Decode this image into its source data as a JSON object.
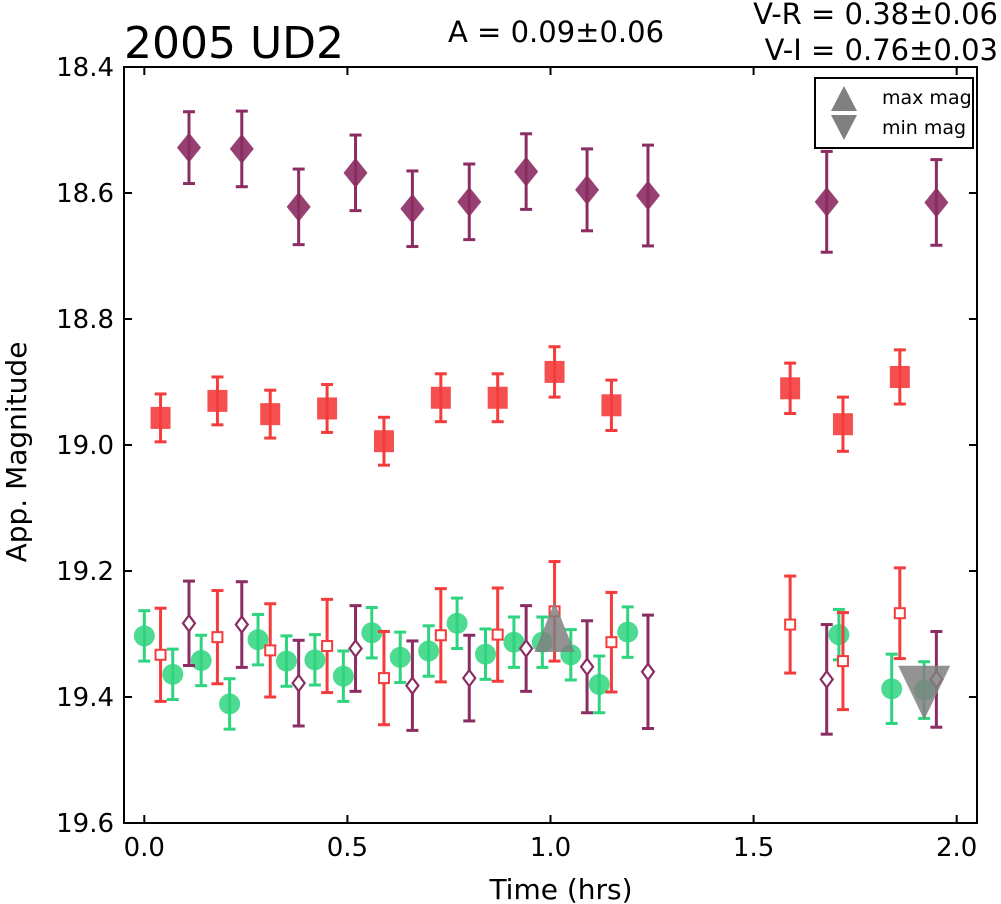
{
  "chart_data": {
    "type": "scatter",
    "title": "2005 UD2",
    "amplitude_text": "A  = 0.09±0.06",
    "color_indices": [
      "V-R = 0.38±0.06",
      "V-I  = 0.76±0.03"
    ],
    "xlabel": "Time (hrs)",
    "ylabel": "App. Magnitude",
    "xlim": [
      -0.05,
      2.05
    ],
    "ylim": [
      19.6,
      18.4
    ],
    "y_inverted": true,
    "x_ticks": [
      "0.0",
      "0.5",
      "1.0",
      "1.5",
      "2.0"
    ],
    "y_ticks": [
      "18.4",
      "18.6",
      "18.8",
      "19.0",
      "19.2",
      "19.4",
      "19.6"
    ],
    "grid": false,
    "legend_position": "top-right",
    "legend": [
      {
        "name": "max mag",
        "marker": "triangle-up",
        "color": "#808080"
      },
      {
        "name": "min mag",
        "marker": "triangle-down",
        "color": "#808080"
      }
    ],
    "series": [
      {
        "marker": "diamond-filled",
        "color": "#8b2c62",
        "x": [
          0.11,
          0.24,
          0.38,
          0.52,
          0.66,
          0.8,
          0.94,
          1.09,
          1.24,
          1.68,
          1.95
        ],
        "y": [
          18.528,
          18.53,
          18.622,
          18.568,
          18.625,
          18.614,
          18.566,
          18.595,
          18.604,
          18.614,
          18.615
        ],
        "err": [
          0.057,
          0.06,
          0.06,
          0.06,
          0.06,
          0.06,
          0.06,
          0.065,
          0.08,
          0.08,
          0.068
        ]
      },
      {
        "marker": "square-filled",
        "color": "#f43c3c",
        "x": [
          0.04,
          0.18,
          0.31,
          0.45,
          0.59,
          0.73,
          0.87,
          1.01,
          1.15,
          1.59,
          1.72,
          1.86
        ],
        "y": [
          18.957,
          18.93,
          18.951,
          18.942,
          18.994,
          18.925,
          18.925,
          18.884,
          18.937,
          18.91,
          18.967,
          18.892
        ],
        "err": [
          0.038,
          0.038,
          0.038,
          0.038,
          0.038,
          0.038,
          0.038,
          0.04,
          0.04,
          0.04,
          0.043,
          0.043
        ]
      },
      {
        "marker": "circle-filled",
        "color": "#2ed47e",
        "x": [
          0.0,
          0.07,
          0.14,
          0.21,
          0.28,
          0.35,
          0.42,
          0.49,
          0.56,
          0.63,
          0.7,
          0.77,
          0.84,
          0.91,
          0.98,
          1.05,
          1.12,
          1.19,
          1.71,
          1.84,
          1.92
        ],
        "y": [
          19.303,
          19.364,
          19.342,
          19.411,
          19.309,
          19.343,
          19.341,
          19.367,
          19.298,
          19.337,
          19.327,
          19.283,
          19.332,
          19.313,
          19.313,
          19.333,
          19.38,
          19.297,
          19.301,
          19.387,
          19.389
        ],
        "err": [
          0.04,
          0.04,
          0.04,
          0.04,
          0.04,
          0.04,
          0.04,
          0.04,
          0.04,
          0.04,
          0.04,
          0.04,
          0.04,
          0.04,
          0.04,
          0.04,
          0.045,
          0.04,
          0.04,
          0.055,
          0.045
        ]
      },
      {
        "marker": "square-open",
        "color": "#f43c3c",
        "x": [
          0.04,
          0.18,
          0.31,
          0.45,
          0.59,
          0.73,
          0.87,
          1.01,
          1.15,
          1.59,
          1.72,
          1.86
        ],
        "y": [
          19.333,
          19.305,
          19.326,
          19.319,
          19.37,
          19.302,
          19.301,
          19.264,
          19.313,
          19.285,
          19.343,
          19.267
        ],
        "err": [
          0.074,
          0.074,
          0.074,
          0.074,
          0.074,
          0.074,
          0.074,
          0.079,
          0.079,
          0.077,
          0.077,
          0.072
        ]
      },
      {
        "marker": "diamond-open",
        "color": "#8b2c62",
        "x": [
          0.11,
          0.24,
          0.38,
          0.52,
          0.66,
          0.8,
          0.94,
          1.09,
          1.24,
          1.68,
          1.95
        ],
        "y": [
          19.283,
          19.285,
          19.378,
          19.323,
          19.382,
          19.37,
          19.323,
          19.352,
          19.36,
          19.372,
          19.372
        ],
        "err": [
          0.067,
          0.068,
          0.068,
          0.068,
          0.071,
          0.068,
          0.068,
          0.073,
          0.09,
          0.087,
          0.076
        ]
      }
    ],
    "markers": [
      {
        "name": "max mag",
        "shape": "triangle-up",
        "x": 1.01,
        "y": 19.3,
        "color": "#808080"
      },
      {
        "name": "min mag",
        "shape": "triangle-down",
        "x": 1.92,
        "y": 19.36,
        "color": "#808080"
      }
    ]
  }
}
